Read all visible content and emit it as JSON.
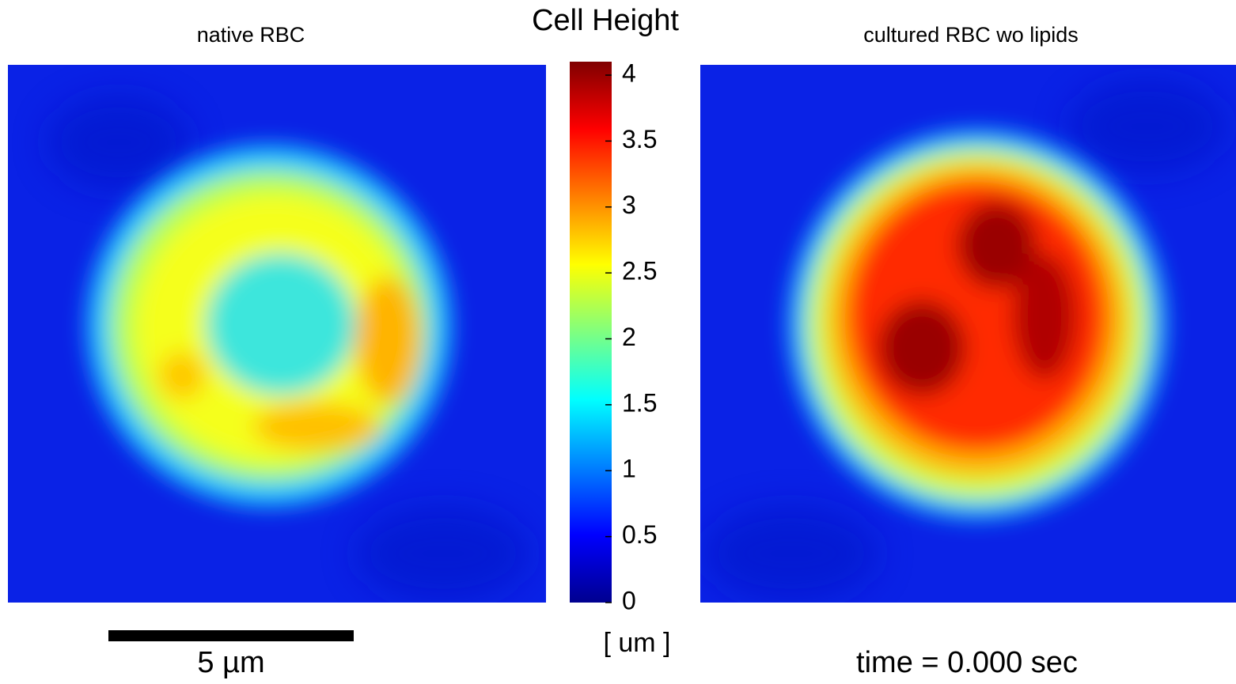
{
  "title": "Cell Height",
  "panels": [
    {
      "title": "native RBC"
    },
    {
      "title": "cultured RBC wo lipids"
    }
  ],
  "colorbar": {
    "lim": [
      0,
      4
    ],
    "ticks": [
      0,
      0.5,
      1,
      1.5,
      2,
      2.5,
      3,
      3.5,
      4
    ],
    "unit": "[ um ]"
  },
  "scale_bar": {
    "label": "5 µm"
  },
  "time": "time = 0.000 sec"
}
